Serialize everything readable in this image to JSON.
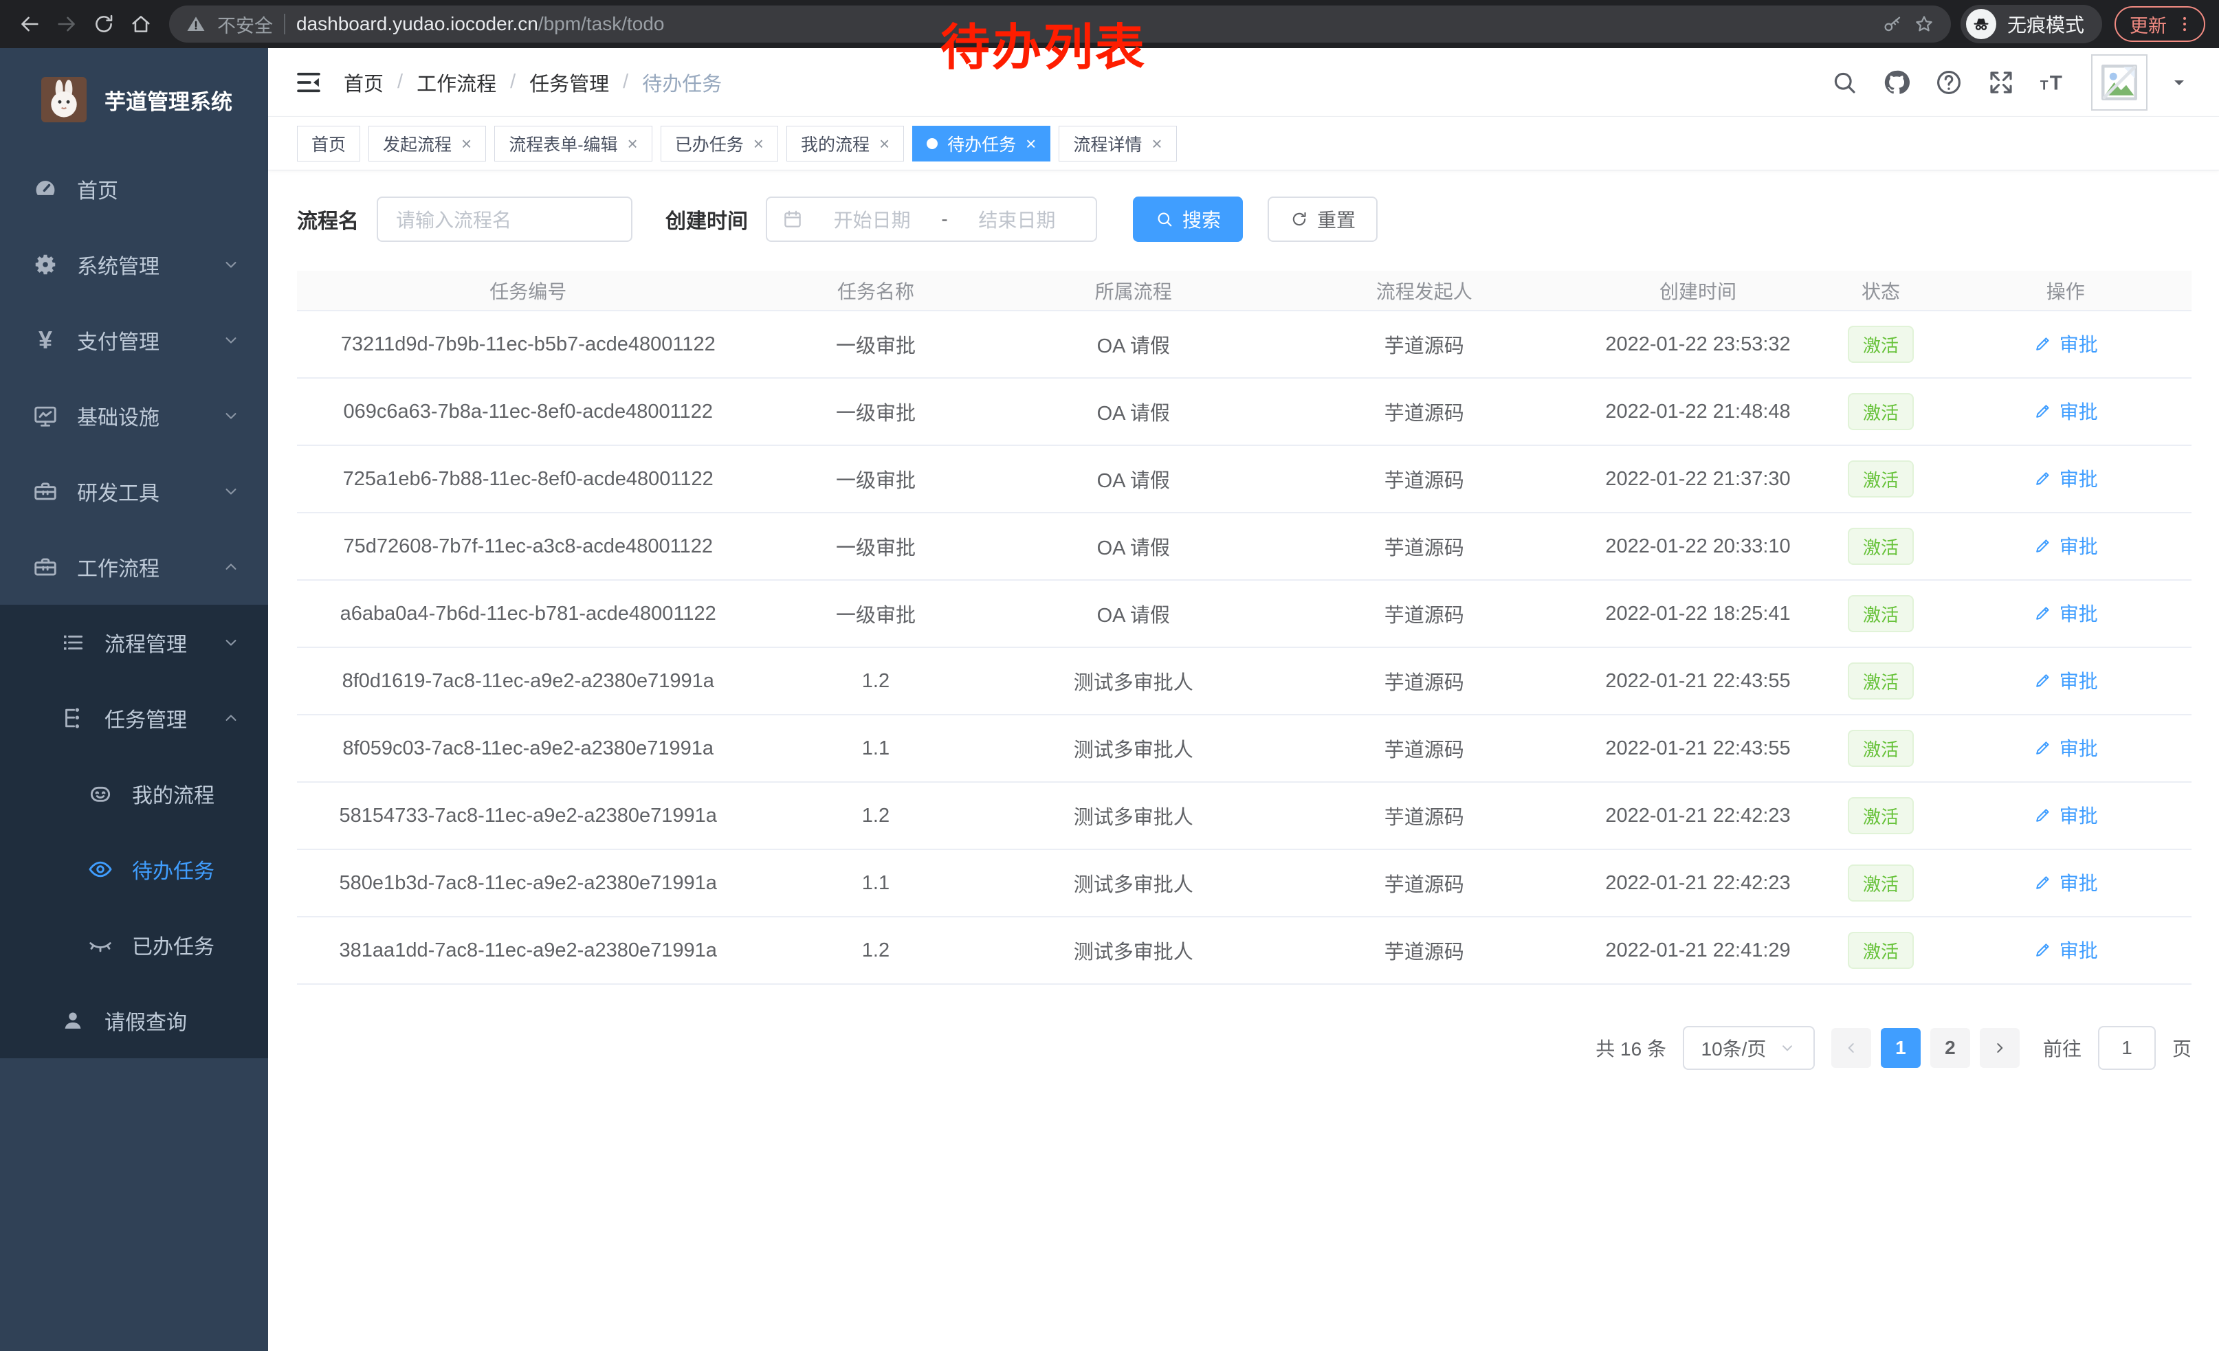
{
  "browser": {
    "security_label": "不安全",
    "url_host": "dashboard.yudao.iocoder.cn",
    "url_path": "/bpm/task/todo",
    "incognito_label": "无痕模式",
    "update_label": "更新"
  },
  "annotation": {
    "text": "待办列表"
  },
  "sidebar": {
    "title": "芋道管理系统",
    "items": [
      {
        "label": "首页",
        "icon": "dashboard-icon",
        "level": 0,
        "chevron": null,
        "dark": false,
        "active": false
      },
      {
        "label": "系统管理",
        "icon": "gear-icon",
        "level": 0,
        "chevron": "down",
        "dark": false,
        "active": false
      },
      {
        "label": "支付管理",
        "icon": "yen-icon",
        "level": 0,
        "chevron": "down",
        "dark": false,
        "active": false
      },
      {
        "label": "基础设施",
        "icon": "monitor-icon",
        "level": 0,
        "chevron": "down",
        "dark": false,
        "active": false
      },
      {
        "label": "研发工具",
        "icon": "toolbox-icon",
        "level": 0,
        "chevron": "down",
        "dark": false,
        "active": false
      },
      {
        "label": "工作流程",
        "icon": "briefcase-icon",
        "level": 0,
        "chevron": "up",
        "dark": false,
        "active": false
      },
      {
        "label": "流程管理",
        "icon": "list-icon",
        "level": 1,
        "chevron": "down",
        "dark": true,
        "active": false
      },
      {
        "label": "任务管理",
        "icon": "tree-icon",
        "level": 1,
        "chevron": "up",
        "dark": true,
        "active": false
      },
      {
        "label": "我的流程",
        "icon": "robot-icon",
        "level": 2,
        "chevron": null,
        "dark": true,
        "active": false
      },
      {
        "label": "待办任务",
        "icon": "eye-icon",
        "level": 2,
        "chevron": null,
        "dark": true,
        "active": true
      },
      {
        "label": "已办任务",
        "icon": "eye-closed-icon",
        "level": 2,
        "chevron": null,
        "dark": true,
        "active": false
      },
      {
        "label": "请假查询",
        "icon": "user-icon",
        "level": 1,
        "chevron": null,
        "dark": true,
        "active": false
      }
    ]
  },
  "header": {
    "breadcrumb": [
      "首页",
      "工作流程",
      "任务管理",
      "待办任务"
    ],
    "icons": [
      "search-icon",
      "github-icon",
      "help-icon",
      "fullscreen-icon",
      "font-size-icon"
    ]
  },
  "tabs": [
    {
      "label": "首页",
      "closable": false,
      "active": false
    },
    {
      "label": "发起流程",
      "closable": true,
      "active": false
    },
    {
      "label": "流程表单-编辑",
      "closable": true,
      "active": false
    },
    {
      "label": "已办任务",
      "closable": true,
      "active": false
    },
    {
      "label": "我的流程",
      "closable": true,
      "active": false
    },
    {
      "label": "待办任务",
      "closable": true,
      "active": true
    },
    {
      "label": "流程详情",
      "closable": true,
      "active": false
    }
  ],
  "search": {
    "name_label": "流程名",
    "name_placeholder": "请输入流程名",
    "time_label": "创建时间",
    "start_placeholder": "开始日期",
    "range_separator": "-",
    "end_placeholder": "结束日期",
    "search_label": "搜索",
    "reset_label": "重置"
  },
  "table": {
    "headers": [
      "任务编号",
      "任务名称",
      "所属流程",
      "流程发起人",
      "创建时间",
      "状态",
      "操作"
    ],
    "rows": [
      {
        "id": "73211d9d-7b9b-11ec-b5b7-acde48001122",
        "name": "一级审批",
        "process": "OA 请假",
        "starter": "芋道源码",
        "created": "2022-01-22 23:53:32",
        "status": "激活",
        "action": "审批"
      },
      {
        "id": "069c6a63-7b8a-11ec-8ef0-acde48001122",
        "name": "一级审批",
        "process": "OA 请假",
        "starter": "芋道源码",
        "created": "2022-01-22 21:48:48",
        "status": "激活",
        "action": "审批"
      },
      {
        "id": "725a1eb6-7b88-11ec-8ef0-acde48001122",
        "name": "一级审批",
        "process": "OA 请假",
        "starter": "芋道源码",
        "created": "2022-01-22 21:37:30",
        "status": "激活",
        "action": "审批"
      },
      {
        "id": "75d72608-7b7f-11ec-a3c8-acde48001122",
        "name": "一级审批",
        "process": "OA 请假",
        "starter": "芋道源码",
        "created": "2022-01-22 20:33:10",
        "status": "激活",
        "action": "审批"
      },
      {
        "id": "a6aba0a4-7b6d-11ec-b781-acde48001122",
        "name": "一级审批",
        "process": "OA 请假",
        "starter": "芋道源码",
        "created": "2022-01-22 18:25:41",
        "status": "激活",
        "action": "审批"
      },
      {
        "id": "8f0d1619-7ac8-11ec-a9e2-a2380e71991a",
        "name": "1.2",
        "process": "测试多审批人",
        "starter": "芋道源码",
        "created": "2022-01-21 22:43:55",
        "status": "激活",
        "action": "审批"
      },
      {
        "id": "8f059c03-7ac8-11ec-a9e2-a2380e71991a",
        "name": "1.1",
        "process": "测试多审批人",
        "starter": "芋道源码",
        "created": "2022-01-21 22:43:55",
        "status": "激活",
        "action": "审批"
      },
      {
        "id": "58154733-7ac8-11ec-a9e2-a2380e71991a",
        "name": "1.2",
        "process": "测试多审批人",
        "starter": "芋道源码",
        "created": "2022-01-21 22:42:23",
        "status": "激活",
        "action": "审批"
      },
      {
        "id": "580e1b3d-7ac8-11ec-a9e2-a2380e71991a",
        "name": "1.1",
        "process": "测试多审批人",
        "starter": "芋道源码",
        "created": "2022-01-21 22:42:23",
        "status": "激活",
        "action": "审批"
      },
      {
        "id": "381aa1dd-7ac8-11ec-a9e2-a2380e71991a",
        "name": "1.2",
        "process": "测试多审批人",
        "starter": "芋道源码",
        "created": "2022-01-21 22:41:29",
        "status": "激活",
        "action": "审批"
      }
    ]
  },
  "pagination": {
    "total_label": "共 16 条",
    "page_size_label": "10条/页",
    "pages": [
      {
        "label": "1",
        "active": true
      },
      {
        "label": "2",
        "active": false
      }
    ],
    "goto_label": "前往",
    "goto_value": "1",
    "page_unit": "页"
  },
  "colors": {
    "primary": "#409eff",
    "success_text": "#67c23a",
    "success_bg": "#f0f9eb",
    "sidebar_bg": "#304156",
    "submenu_bg": "#1f2d3d",
    "annotation_red": "#fe1d00",
    "update_pill": "#f28b82"
  }
}
